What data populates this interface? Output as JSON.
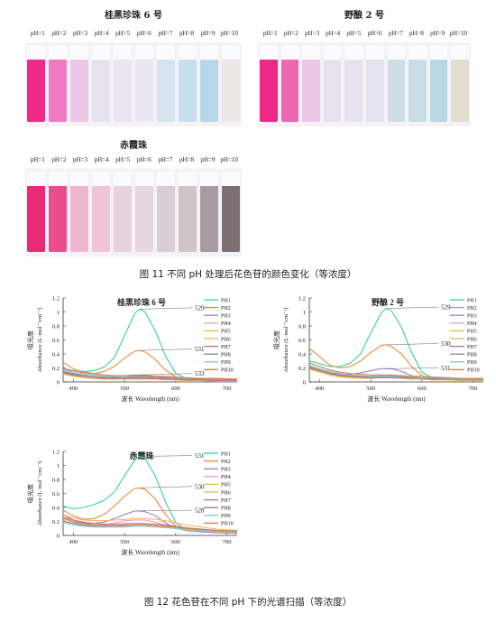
{
  "vial_panels": [
    {
      "title": "桂黑珍珠 6 号",
      "ph_labels": [
        "pH=1",
        "pH=2",
        "pH=3",
        "pH=4",
        "pH=5",
        "pH=6",
        "pH=7",
        "pH=8",
        "pH=9",
        "pH=10"
      ],
      "colors": [
        "#ee2a8b",
        "#f07ac0",
        "#eac8e6",
        "#e6e2f0",
        "#ebe4f1",
        "#ece6f2",
        "#d7e4ef",
        "#c6dfec",
        "#b5d7e8",
        "#ece8e6"
      ]
    },
    {
      "title": "野酿 2 号",
      "ph_labels": [
        "pH=1",
        "pH=2",
        "pH=3",
        "pH=4",
        "pH=5",
        "pH=6",
        "pH=7",
        "pH=8",
        "pH=9",
        "pH=10"
      ],
      "colors": [
        "#ea2c88",
        "#ef66b3",
        "#ebc9e6",
        "#e8e1f0",
        "#e6e2ef",
        "#e3e2ee",
        "#cfdde9",
        "#c8dde6",
        "#bcd6e4",
        "#e3dcd0"
      ]
    },
    {
      "title": "赤霞珠",
      "ph_labels": [
        "pH=1",
        "pH=2",
        "pH=3",
        "pH=4",
        "pH=5",
        "pH=6",
        "pH=7",
        "pH=8",
        "pH=9",
        "pH=10"
      ],
      "colors": [
        "#e92a77",
        "#ec4c8e",
        "#efb5cf",
        "#efc5d6",
        "#e9d2df",
        "#e6d6df",
        "#d8cdd4",
        "#cfc5c8",
        "#a89aa0",
        "#7e6f74"
      ]
    }
  ],
  "figure11_caption": "图 11 不同 pH 处理后花色苷的颜色变化（等浓度）",
  "figure12_caption": "图 12  花色苷在不同 pH 下的光谱扫描（等浓度）",
  "chart_data": [
    {
      "type": "line",
      "title": "桂黑珍珠 6 号",
      "xlabel": "波长 Wavelength (nm)",
      "ylabel_cn": "吸光度",
      "ylabel": "Absorbance (L·mol⁻¹cm⁻¹)",
      "xlim": [
        380,
        720
      ],
      "ylim": [
        0,
        1.2
      ],
      "xticks": [
        400,
        500,
        600,
        700
      ],
      "yticks": [
        0,
        0.2,
        0.4,
        0.6,
        0.8,
        1.0,
        1.2
      ],
      "x": [
        380,
        400,
        420,
        440,
        460,
        480,
        500,
        520,
        530,
        540,
        560,
        580,
        600,
        620,
        650,
        680,
        720
      ],
      "series": [
        {
          "name": "PH1",
          "color": "#34d1a4",
          "values": [
            0.17,
            0.16,
            0.15,
            0.16,
            0.21,
            0.35,
            0.66,
            0.98,
            1.04,
            1.0,
            0.73,
            0.37,
            0.12,
            0.05,
            0.03,
            0.02,
            0.02
          ]
        },
        {
          "name": "PH2",
          "color": "#f08a3a",
          "values": [
            0.28,
            0.19,
            0.12,
            0.12,
            0.15,
            0.22,
            0.34,
            0.44,
            0.45,
            0.43,
            0.32,
            0.17,
            0.07,
            0.04,
            0.03,
            0.02,
            0.02
          ]
        },
        {
          "name": "PH3",
          "color": "#9a7fd6",
          "values": [
            0.14,
            0.11,
            0.08,
            0.06,
            0.06,
            0.07,
            0.09,
            0.1,
            0.1,
            0.1,
            0.08,
            0.05,
            0.03,
            0.02,
            0.02,
            0.01,
            0.01
          ]
        },
        {
          "name": "PH4",
          "color": "#e6a0c8",
          "values": [
            0.12,
            0.09,
            0.06,
            0.05,
            0.05,
            0.05,
            0.06,
            0.06,
            0.06,
            0.06,
            0.05,
            0.04,
            0.03,
            0.02,
            0.02,
            0.01,
            0.01
          ]
        },
        {
          "name": "PH5",
          "color": "#d8c834",
          "values": [
            0.11,
            0.08,
            0.06,
            0.05,
            0.04,
            0.04,
            0.04,
            0.04,
            0.04,
            0.04,
            0.04,
            0.03,
            0.03,
            0.02,
            0.02,
            0.01,
            0.01
          ]
        },
        {
          "name": "PH6",
          "color": "#f1b55c",
          "values": [
            0.12,
            0.09,
            0.07,
            0.05,
            0.05,
            0.04,
            0.04,
            0.04,
            0.04,
            0.04,
            0.04,
            0.04,
            0.03,
            0.03,
            0.02,
            0.02,
            0.02
          ]
        },
        {
          "name": "PH7",
          "color": "#c86a92",
          "values": [
            0.13,
            0.1,
            0.08,
            0.06,
            0.05,
            0.05,
            0.05,
            0.05,
            0.05,
            0.05,
            0.05,
            0.04,
            0.04,
            0.03,
            0.03,
            0.02,
            0.02
          ]
        },
        {
          "name": "PH8",
          "color": "#8a8a8a",
          "values": [
            0.15,
            0.12,
            0.1,
            0.08,
            0.07,
            0.06,
            0.06,
            0.07,
            0.07,
            0.07,
            0.06,
            0.06,
            0.05,
            0.04,
            0.04,
            0.03,
            0.03
          ]
        },
        {
          "name": "PH9",
          "color": "#7ec8e0",
          "values": [
            0.17,
            0.14,
            0.12,
            0.1,
            0.09,
            0.08,
            0.08,
            0.08,
            0.08,
            0.08,
            0.08,
            0.07,
            0.06,
            0.05,
            0.05,
            0.04,
            0.04
          ]
        },
        {
          "name": "PH10",
          "color": "#e07a3a",
          "values": [
            0.19,
            0.16,
            0.14,
            0.12,
            0.1,
            0.09,
            0.09,
            0.09,
            0.09,
            0.09,
            0.08,
            0.08,
            0.07,
            0.06,
            0.05,
            0.05,
            0.04
          ]
        }
      ],
      "annotations": [
        {
          "text": "529",
          "x": 529,
          "y": 1.04,
          "label_y": 1.06
        },
        {
          "text": "531",
          "x": 531,
          "y": 0.45,
          "label_y": 0.47
        },
        {
          "text": "533",
          "x": 533,
          "y": 0.1,
          "label_y": 0.12
        }
      ]
    },
    {
      "type": "line",
      "title": "野酿 2 号",
      "xlabel": "波长 Wavelength (nm)",
      "ylabel_cn": "吸光度",
      "ylabel": "Absorbance (L·mol⁻¹cm⁻¹)",
      "xlim": [
        380,
        720
      ],
      "ylim": [
        0,
        1.2
      ],
      "xticks": [
        400,
        500,
        600,
        700
      ],
      "yticks": [
        0,
        0.2,
        0.4,
        0.6,
        0.8,
        1.0,
        1.2
      ],
      "x": [
        380,
        400,
        420,
        440,
        460,
        480,
        500,
        520,
        530,
        540,
        560,
        580,
        600,
        620,
        650,
        680,
        720
      ],
      "series": [
        {
          "name": "PH1",
          "color": "#34d1a4",
          "values": [
            0.3,
            0.26,
            0.22,
            0.22,
            0.27,
            0.4,
            0.7,
            0.98,
            1.05,
            1.02,
            0.78,
            0.42,
            0.14,
            0.06,
            0.04,
            0.03,
            0.03
          ]
        },
        {
          "name": "PH2",
          "color": "#f08a3a",
          "values": [
            0.48,
            0.36,
            0.24,
            0.2,
            0.22,
            0.3,
            0.42,
            0.52,
            0.53,
            0.51,
            0.4,
            0.22,
            0.09,
            0.05,
            0.04,
            0.03,
            0.03
          ]
        },
        {
          "name": "PH3",
          "color": "#9a7fd6",
          "values": [
            0.22,
            0.17,
            0.13,
            0.11,
            0.11,
            0.13,
            0.16,
            0.19,
            0.19,
            0.19,
            0.15,
            0.09,
            0.05,
            0.04,
            0.03,
            0.02,
            0.02
          ]
        },
        {
          "name": "PH4",
          "color": "#e6a0c8",
          "values": [
            0.2,
            0.15,
            0.11,
            0.08,
            0.07,
            0.07,
            0.08,
            0.09,
            0.09,
            0.09,
            0.08,
            0.06,
            0.04,
            0.03,
            0.03,
            0.02,
            0.02
          ]
        },
        {
          "name": "PH5",
          "color": "#d8c834",
          "values": [
            0.18,
            0.14,
            0.1,
            0.07,
            0.06,
            0.05,
            0.05,
            0.06,
            0.06,
            0.06,
            0.05,
            0.04,
            0.04,
            0.03,
            0.03,
            0.02,
            0.02
          ]
        },
        {
          "name": "PH6",
          "color": "#f1b55c",
          "values": [
            0.19,
            0.15,
            0.11,
            0.08,
            0.07,
            0.06,
            0.06,
            0.06,
            0.06,
            0.06,
            0.06,
            0.05,
            0.04,
            0.04,
            0.03,
            0.03,
            0.02
          ]
        },
        {
          "name": "PH7",
          "color": "#c86a92",
          "values": [
            0.2,
            0.16,
            0.12,
            0.09,
            0.08,
            0.07,
            0.06,
            0.06,
            0.06,
            0.06,
            0.06,
            0.05,
            0.05,
            0.04,
            0.04,
            0.03,
            0.03
          ]
        },
        {
          "name": "PH8",
          "color": "#8a8a8a",
          "values": [
            0.22,
            0.17,
            0.13,
            0.1,
            0.09,
            0.08,
            0.07,
            0.07,
            0.07,
            0.07,
            0.07,
            0.06,
            0.05,
            0.05,
            0.04,
            0.04,
            0.03
          ]
        },
        {
          "name": "PH9",
          "color": "#7ec8e0",
          "values": [
            0.24,
            0.19,
            0.15,
            0.12,
            0.1,
            0.09,
            0.08,
            0.08,
            0.08,
            0.08,
            0.08,
            0.07,
            0.06,
            0.06,
            0.05,
            0.04,
            0.04
          ]
        },
        {
          "name": "PH10",
          "color": "#e07a3a",
          "values": [
            0.27,
            0.22,
            0.17,
            0.14,
            0.12,
            0.11,
            0.1,
            0.1,
            0.1,
            0.1,
            0.09,
            0.08,
            0.08,
            0.07,
            0.06,
            0.05,
            0.05
          ]
        }
      ],
      "annotations": [
        {
          "text": "529",
          "x": 529,
          "y": 1.05,
          "label_y": 1.07
        },
        {
          "text": "530",
          "x": 530,
          "y": 0.53,
          "label_y": 0.55
        },
        {
          "text": "531",
          "x": 531,
          "y": 0.19,
          "label_y": 0.2
        }
      ]
    },
    {
      "type": "line",
      "title": "赤霞珠",
      "xlabel": "波长 Wavelength (nm)",
      "ylabel_cn": "吸光度",
      "ylabel": "Absorbance (L·mol⁻¹cm⁻¹)",
      "xlim": [
        380,
        720
      ],
      "ylim": [
        0,
        1.2
      ],
      "xticks": [
        400,
        500,
        600,
        700
      ],
      "yticks": [
        0,
        0.2,
        0.4,
        0.6,
        0.8,
        1.0,
        1.2
      ],
      "x": [
        380,
        400,
        420,
        440,
        460,
        480,
        500,
        520,
        530,
        540,
        560,
        580,
        600,
        620,
        650,
        680,
        720
      ],
      "series": [
        {
          "name": "PH1",
          "color": "#34d1a4",
          "values": [
            0.42,
            0.38,
            0.4,
            0.44,
            0.5,
            0.62,
            0.85,
            1.08,
            1.13,
            1.1,
            0.85,
            0.48,
            0.18,
            0.08,
            0.05,
            0.04,
            0.03
          ]
        },
        {
          "name": "PH2",
          "color": "#f08a3a",
          "values": [
            0.36,
            0.28,
            0.23,
            0.24,
            0.3,
            0.42,
            0.56,
            0.67,
            0.68,
            0.66,
            0.52,
            0.3,
            0.13,
            0.07,
            0.05,
            0.04,
            0.03
          ]
        },
        {
          "name": "PH3",
          "color": "#9a7fd6",
          "values": [
            0.3,
            0.22,
            0.18,
            0.17,
            0.19,
            0.24,
            0.3,
            0.35,
            0.35,
            0.34,
            0.28,
            0.18,
            0.1,
            0.07,
            0.05,
            0.04,
            0.03
          ]
        },
        {
          "name": "PH4",
          "color": "#e6a0c8",
          "values": [
            0.25,
            0.19,
            0.15,
            0.14,
            0.15,
            0.18,
            0.21,
            0.22,
            0.22,
            0.22,
            0.19,
            0.15,
            0.1,
            0.08,
            0.06,
            0.05,
            0.04
          ]
        },
        {
          "name": "PH5",
          "color": "#d8c834",
          "values": [
            0.22,
            0.17,
            0.14,
            0.12,
            0.12,
            0.13,
            0.14,
            0.15,
            0.15,
            0.15,
            0.14,
            0.12,
            0.1,
            0.08,
            0.07,
            0.05,
            0.04
          ]
        },
        {
          "name": "PH6",
          "color": "#f1b55c",
          "values": [
            0.3,
            0.25,
            0.22,
            0.21,
            0.21,
            0.22,
            0.23,
            0.24,
            0.24,
            0.24,
            0.23,
            0.21,
            0.18,
            0.15,
            0.12,
            0.09,
            0.07
          ]
        },
        {
          "name": "PH7",
          "color": "#c86a92",
          "values": [
            0.26,
            0.22,
            0.19,
            0.17,
            0.16,
            0.16,
            0.17,
            0.17,
            0.17,
            0.17,
            0.16,
            0.15,
            0.13,
            0.11,
            0.09,
            0.07,
            0.06
          ]
        },
        {
          "name": "PH8",
          "color": "#8a8a8a",
          "values": [
            0.2,
            0.17,
            0.15,
            0.14,
            0.14,
            0.14,
            0.15,
            0.15,
            0.15,
            0.15,
            0.14,
            0.13,
            0.12,
            0.1,
            0.08,
            0.06,
            0.05
          ]
        },
        {
          "name": "PH9",
          "color": "#7ec8e0",
          "values": [
            0.18,
            0.15,
            0.13,
            0.12,
            0.12,
            0.12,
            0.12,
            0.13,
            0.13,
            0.13,
            0.12,
            0.11,
            0.1,
            0.09,
            0.07,
            0.06,
            0.05
          ]
        },
        {
          "name": "PH10",
          "color": "#e07a3a",
          "values": [
            0.24,
            0.2,
            0.17,
            0.15,
            0.14,
            0.14,
            0.14,
            0.15,
            0.15,
            0.15,
            0.14,
            0.13,
            0.12,
            0.1,
            0.09,
            0.07,
            0.06
          ]
        }
      ],
      "annotations": [
        {
          "text": "531",
          "x": 531,
          "y": 1.13,
          "label_y": 1.14
        },
        {
          "text": "530",
          "x": 530,
          "y": 0.68,
          "label_y": 0.7
        },
        {
          "text": "528",
          "x": 528,
          "y": 0.35,
          "label_y": 0.36
        }
      ]
    }
  ]
}
